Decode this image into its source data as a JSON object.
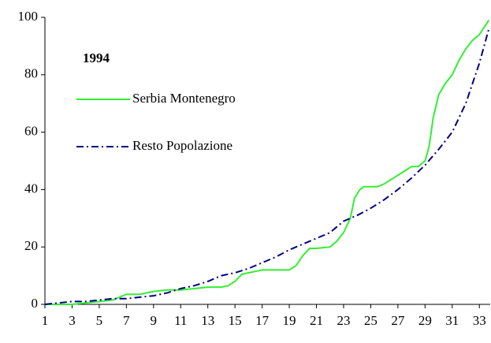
{
  "chart_data": {
    "type": "line",
    "legend_title": "1994",
    "xlim": [
      1,
      33.8
    ],
    "xticks": [
      1,
      3,
      5,
      7,
      9,
      11,
      13,
      15,
      17,
      19,
      21,
      23,
      25,
      27,
      29,
      31,
      33
    ],
    "ylim": [
      0,
      100
    ],
    "yticks": [
      0,
      20,
      40,
      60,
      80,
      100
    ],
    "grid": false,
    "legend": "upper left",
    "series": [
      {
        "name": "Serbia Montenegro",
        "color": "#33ee33",
        "dash": "solid",
        "x": [
          1,
          2,
          3,
          4,
          5,
          6,
          7,
          8,
          9,
          10,
          11,
          12,
          13,
          14,
          14.5,
          15,
          15.5,
          16,
          17,
          18,
          19,
          19.5,
          20,
          20.5,
          21,
          22,
          22.5,
          23,
          23.5,
          23.8,
          24.2,
          24.5,
          25.5,
          26,
          27,
          28,
          28.5,
          29,
          29.3,
          29.6,
          30,
          30.5,
          31,
          31.5,
          32,
          32.5,
          33,
          33.7
        ],
        "values": [
          0,
          0,
          0,
          0.5,
          1,
          1.5,
          3.5,
          3.5,
          4.5,
          5,
          5,
          5.5,
          6,
          6,
          6.5,
          8,
          10.5,
          11,
          12,
          12,
          12,
          13.5,
          17,
          19.5,
          19.5,
          20,
          22,
          25,
          30,
          37,
          40,
          41,
          41,
          42,
          45,
          48,
          48,
          50,
          55,
          65,
          73,
          77,
          80,
          85,
          89,
          92,
          94,
          99
        ]
      },
      {
        "name": "Resto Popolazione",
        "color": "#000080",
        "dash": "dashdot",
        "x": [
          1,
          2,
          3,
          4,
          5,
          6,
          7,
          8,
          9,
          10,
          11,
          12,
          13,
          14,
          15,
          16,
          17,
          18,
          19,
          20,
          21,
          22,
          23,
          24,
          25,
          26,
          27,
          28,
          29,
          30,
          31,
          32,
          33,
          33.7
        ],
        "values": [
          0,
          0.5,
          1,
          1,
          1.5,
          2,
          2,
          2.5,
          3,
          4,
          5.5,
          6.5,
          8,
          10,
          11,
          12.5,
          14.5,
          16.5,
          19,
          21,
          23,
          25,
          29,
          31,
          33.5,
          36.5,
          40,
          44,
          48.5,
          54,
          60,
          70,
          84,
          96
        ]
      }
    ]
  }
}
